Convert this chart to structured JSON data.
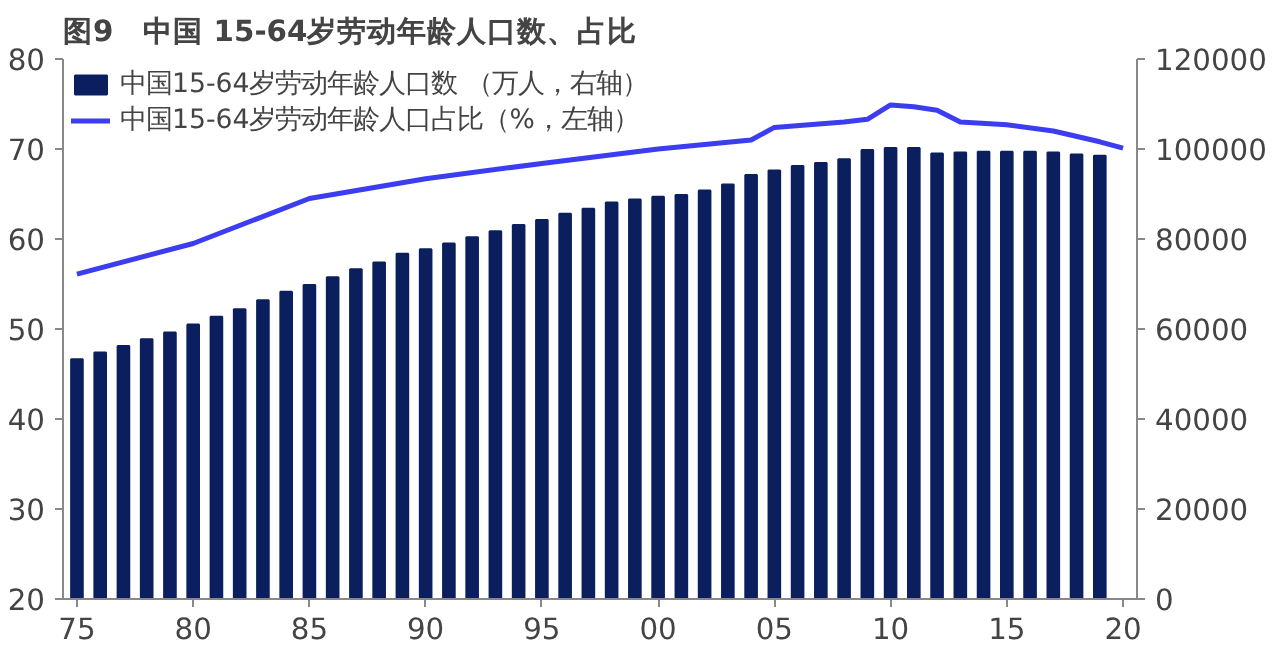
{
  "chart_data": {
    "type": "bar",
    "title": "图9　中国 15-64岁劳动年龄人口数、占比",
    "x": [
      1975,
      1976,
      1977,
      1978,
      1979,
      1980,
      1981,
      1982,
      1983,
      1984,
      1985,
      1986,
      1987,
      1988,
      1989,
      1990,
      1991,
      1992,
      1993,
      1994,
      1995,
      1996,
      1997,
      1998,
      1999,
      2000,
      2001,
      2002,
      2003,
      2004,
      2005,
      2006,
      2007,
      2008,
      2009,
      2010,
      2011,
      2012,
      2013,
      2014,
      2015,
      2016,
      2017,
      2018,
      2019
    ],
    "series": [
      {
        "name": "中国15-64岁劳动年龄人口数 （万人，右轴）",
        "axis": "y2",
        "color": "#0b1f5e",
        "values": [
          53300,
          54800,
          56200,
          57700,
          59200,
          61000,
          62700,
          64400,
          66400,
          68300,
          69800,
          71500,
          73300,
          74800,
          76700,
          77700,
          79000,
          80400,
          81700,
          83100,
          84200,
          85600,
          86700,
          88100,
          88800,
          89400,
          89800,
          90800,
          92100,
          94200,
          95200,
          96200,
          96900,
          97700,
          99800,
          100200,
          100200,
          99000,
          99200,
          99400,
          99400,
          99400,
          99200,
          98800,
          98500
        ]
      },
      {
        "name": "中国15-64岁劳动年龄人口占比（%，左轴）",
        "type": "line",
        "color": "#3c3cf0",
        "x": [
          1975,
          1980,
          1985,
          1990,
          1995,
          2000,
          2004,
          2005,
          2008,
          2009,
          2010,
          2011,
          2012,
          2013,
          2015,
          2017,
          2019,
          2020
        ],
        "values": [
          56.1,
          59.5,
          64.5,
          66.7,
          68.4,
          70.0,
          71.0,
          72.4,
          73.0,
          73.3,
          74.9,
          74.7,
          74.3,
          73.0,
          72.7,
          72.0,
          70.8,
          70.1
        ]
      }
    ],
    "xlim": [
      1974.4,
      2020.6
    ],
    "xticks": [
      {
        "value": 1975,
        "label": "75"
      },
      {
        "value": 1980,
        "label": "80"
      },
      {
        "value": 1985,
        "label": "85"
      },
      {
        "value": 1990,
        "label": "90"
      },
      {
        "value": 1995,
        "label": "95"
      },
      {
        "value": 2000,
        "label": "00"
      },
      {
        "value": 2005,
        "label": "05"
      },
      {
        "value": 2010,
        "label": "10"
      },
      {
        "value": 2015,
        "label": "15"
      },
      {
        "value": 2020,
        "label": "20"
      }
    ],
    "ylim": [
      20,
      80
    ],
    "yticks": [
      20,
      30,
      40,
      50,
      60,
      70,
      80
    ],
    "y2lim": [
      0,
      120000
    ],
    "y2ticks": [
      0,
      20000,
      40000,
      60000,
      80000,
      100000,
      120000
    ],
    "grid": false,
    "legend": "top left"
  }
}
